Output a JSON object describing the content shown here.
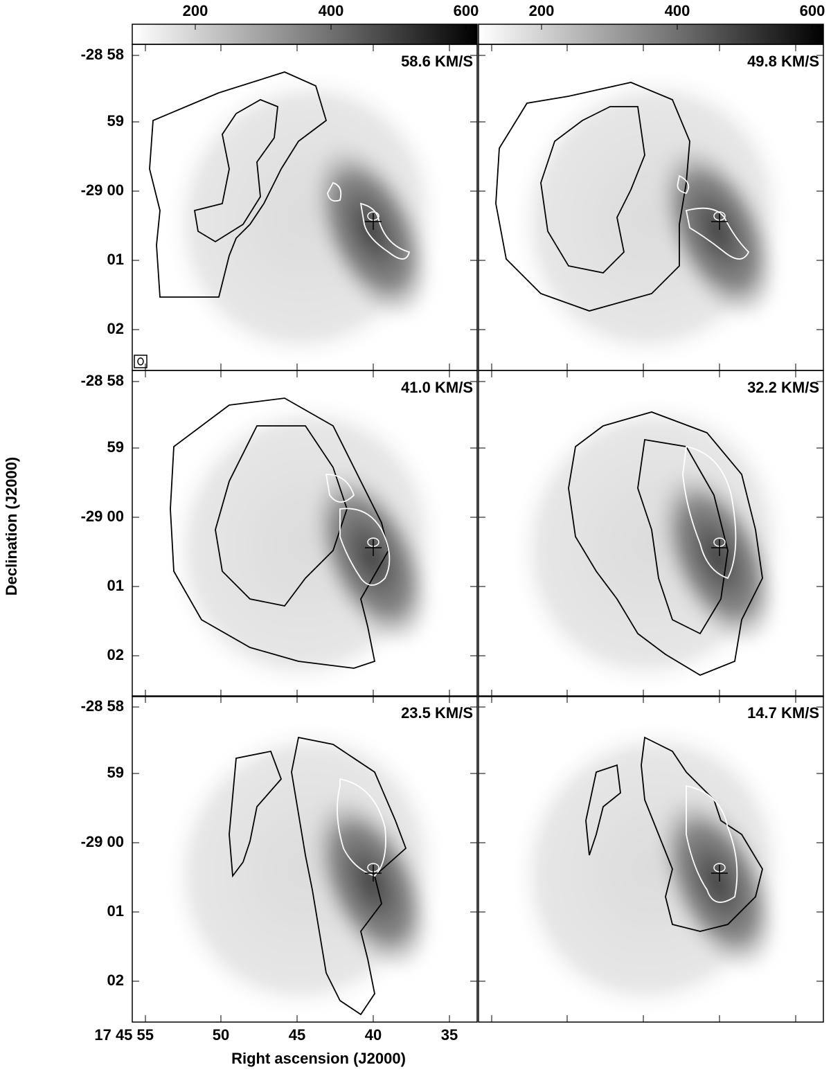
{
  "colorbar": {
    "ticks": [
      200,
      400,
      600
    ]
  },
  "panels": [
    {
      "label": "58.6 KM/S"
    },
    {
      "label": "49.8 KM/S"
    },
    {
      "label": "41.0 KM/S"
    },
    {
      "label": "32.2 KM/S"
    },
    {
      "label": "23.5 KM/S"
    },
    {
      "label": "14.7 KM/S"
    }
  ],
  "y_axis": {
    "title": "Declination (J2000)",
    "tick_labels": [
      "-28 58",
      "59",
      "-29 00",
      "01",
      "02"
    ]
  },
  "x_axis": {
    "title": "Right ascension (J2000)",
    "tick_labels": [
      "17 45 55",
      "50",
      "45",
      "40",
      "35"
    ]
  }
}
